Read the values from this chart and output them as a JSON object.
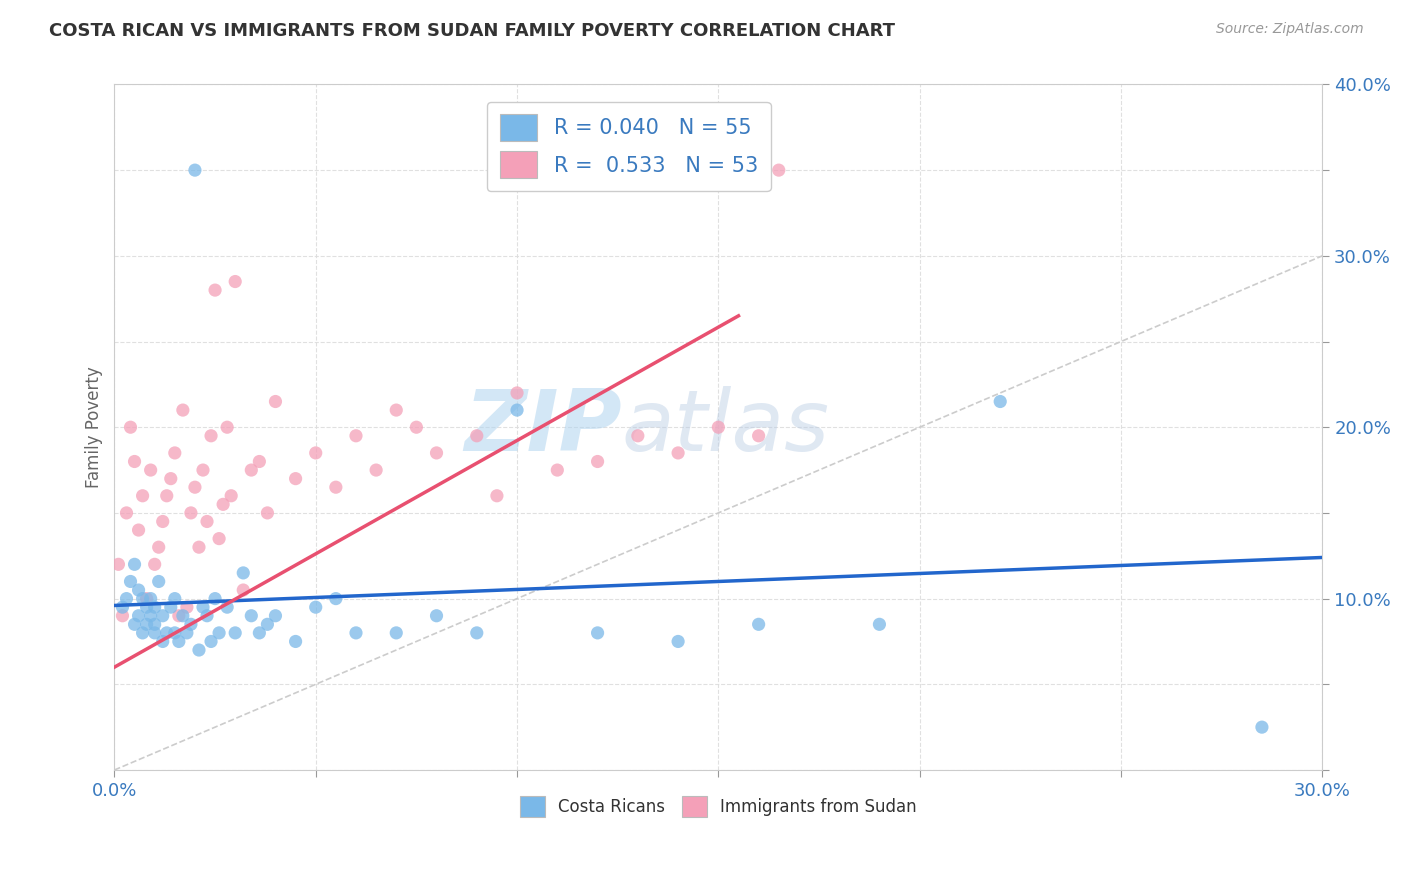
{
  "title": "COSTA RICAN VS IMMIGRANTS FROM SUDAN FAMILY POVERTY CORRELATION CHART",
  "source": "Source: ZipAtlas.com",
  "ylabel": "Family Poverty",
  "xlim": [
    0.0,
    0.3
  ],
  "ylim": [
    0.0,
    0.4
  ],
  "color_blue": "#7ab8e8",
  "color_pink": "#f4a0b8",
  "color_blue_line": "#2266cc",
  "color_pink_line": "#e85070",
  "color_diag": "#cccccc",
  "background_color": "#ffffff",
  "grid_color": "#dddddd",
  "watermark_zip": "ZIP",
  "watermark_atlas": "atlas",
  "legend_labels": [
    "Costa Ricans",
    "Immigrants from Sudan"
  ],
  "costa_rican_x": [
    0.002,
    0.003,
    0.004,
    0.005,
    0.005,
    0.006,
    0.006,
    0.007,
    0.007,
    0.008,
    0.008,
    0.009,
    0.009,
    0.01,
    0.01,
    0.01,
    0.011,
    0.012,
    0.012,
    0.013,
    0.014,
    0.015,
    0.015,
    0.016,
    0.017,
    0.018,
    0.019,
    0.02,
    0.021,
    0.022,
    0.023,
    0.024,
    0.025,
    0.026,
    0.028,
    0.03,
    0.032,
    0.034,
    0.036,
    0.038,
    0.04,
    0.045,
    0.05,
    0.055,
    0.06,
    0.07,
    0.08,
    0.09,
    0.1,
    0.12,
    0.14,
    0.16,
    0.19,
    0.22,
    0.285
  ],
  "costa_rican_y": [
    0.095,
    0.1,
    0.11,
    0.12,
    0.085,
    0.09,
    0.105,
    0.08,
    0.1,
    0.095,
    0.085,
    0.09,
    0.1,
    0.08,
    0.095,
    0.085,
    0.11,
    0.075,
    0.09,
    0.08,
    0.095,
    0.08,
    0.1,
    0.075,
    0.09,
    0.08,
    0.085,
    0.35,
    0.07,
    0.095,
    0.09,
    0.075,
    0.1,
    0.08,
    0.095,
    0.08,
    0.115,
    0.09,
    0.08,
    0.085,
    0.09,
    0.075,
    0.095,
    0.1,
    0.08,
    0.08,
    0.09,
    0.08,
    0.21,
    0.08,
    0.075,
    0.085,
    0.085,
    0.215,
    0.025
  ],
  "sudan_x": [
    0.001,
    0.002,
    0.003,
    0.004,
    0.005,
    0.006,
    0.007,
    0.008,
    0.009,
    0.01,
    0.011,
    0.012,
    0.013,
    0.014,
    0.015,
    0.016,
    0.017,
    0.018,
    0.019,
    0.02,
    0.021,
    0.022,
    0.023,
    0.024,
    0.025,
    0.026,
    0.027,
    0.028,
    0.029,
    0.03,
    0.032,
    0.034,
    0.036,
    0.038,
    0.04,
    0.045,
    0.05,
    0.055,
    0.06,
    0.065,
    0.07,
    0.075,
    0.08,
    0.09,
    0.095,
    0.1,
    0.11,
    0.12,
    0.13,
    0.14,
    0.15,
    0.16,
    0.165
  ],
  "sudan_y": [
    0.12,
    0.09,
    0.15,
    0.2,
    0.18,
    0.14,
    0.16,
    0.1,
    0.175,
    0.12,
    0.13,
    0.145,
    0.16,
    0.17,
    0.185,
    0.09,
    0.21,
    0.095,
    0.15,
    0.165,
    0.13,
    0.175,
    0.145,
    0.195,
    0.28,
    0.135,
    0.155,
    0.2,
    0.16,
    0.285,
    0.105,
    0.175,
    0.18,
    0.15,
    0.215,
    0.17,
    0.185,
    0.165,
    0.195,
    0.175,
    0.21,
    0.2,
    0.185,
    0.195,
    0.16,
    0.22,
    0.175,
    0.18,
    0.195,
    0.185,
    0.2,
    0.195,
    0.35
  ],
  "blue_line_x": [
    0.0,
    0.3
  ],
  "blue_line_y": [
    0.096,
    0.124
  ],
  "pink_line_x": [
    0.0,
    0.155
  ],
  "pink_line_y": [
    0.06,
    0.265
  ]
}
